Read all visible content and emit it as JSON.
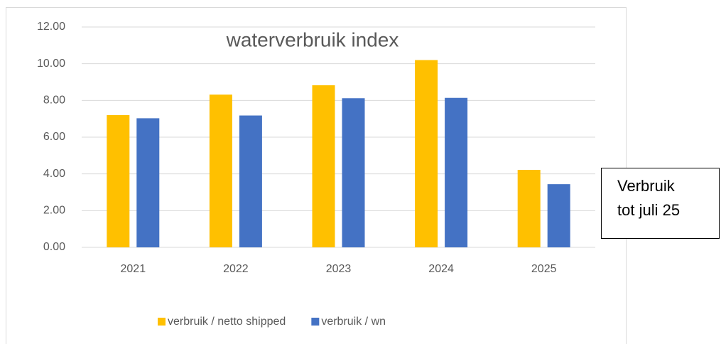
{
  "chart_data": {
    "type": "bar",
    "title": "waterverbruik index",
    "categories": [
      "2021",
      "2022",
      "2023",
      "2024",
      "2025"
    ],
    "series": [
      {
        "name": "verbruik / netto shipped",
        "color": "#ffc000",
        "values": [
          7.2,
          8.32,
          8.83,
          10.2,
          4.22
        ]
      },
      {
        "name": "verbruik / wn",
        "color": "#4472c4",
        "values": [
          7.03,
          7.18,
          8.12,
          8.14,
          3.44
        ]
      }
    ],
    "ylim": [
      0,
      12
    ],
    "yticks": [
      {
        "value": 0,
        "label": "0.00"
      },
      {
        "value": 2,
        "label": "2.00"
      },
      {
        "value": 4,
        "label": "4.00"
      },
      {
        "value": 6,
        "label": "6.00"
      },
      {
        "value": 8,
        "label": "8.00"
      },
      {
        "value": 10,
        "label": "10.00"
      },
      {
        "value": 12,
        "label": "12.00"
      }
    ],
    "grid": true,
    "legend": "bottom",
    "annotation": [
      "Verbruik",
      "tot juli 25"
    ]
  }
}
